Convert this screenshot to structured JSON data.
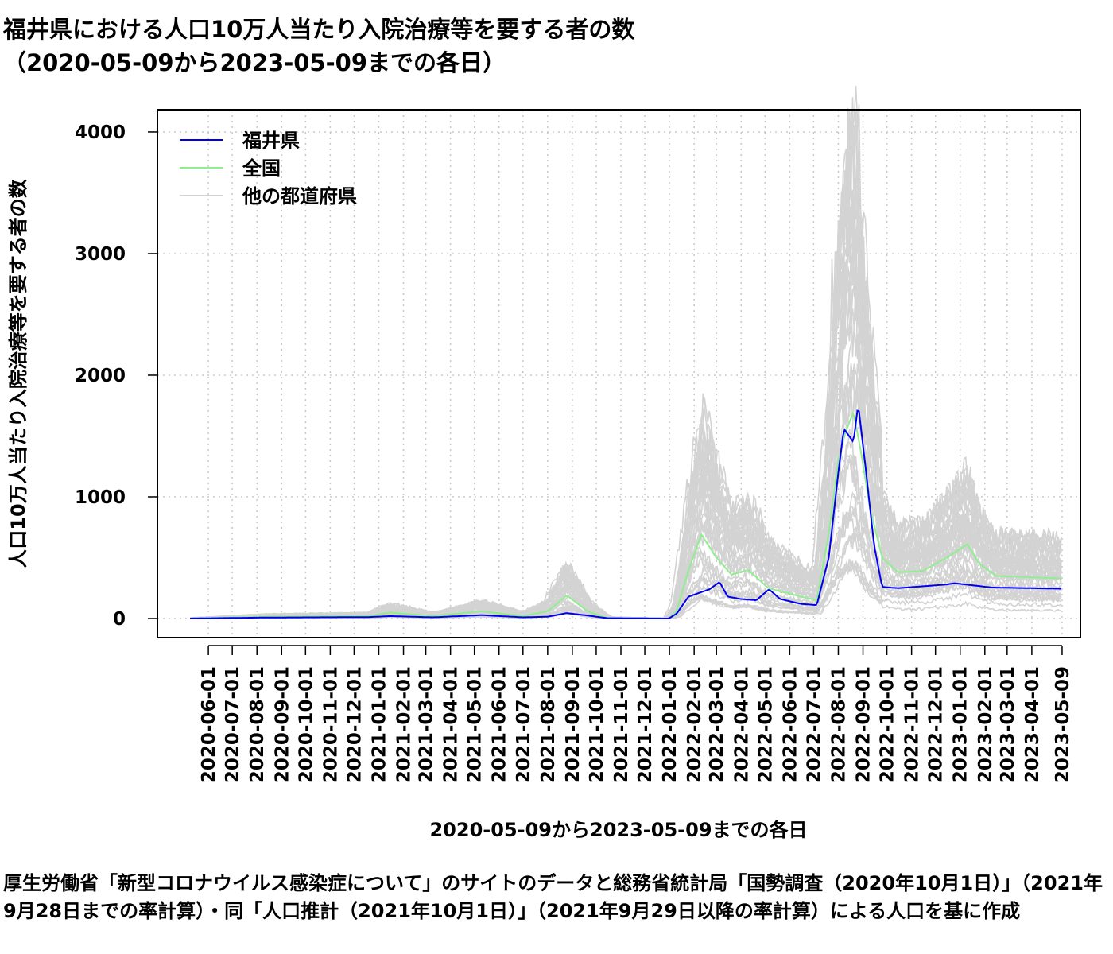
{
  "chart_data": {
    "type": "line",
    "title_line1": "福井県における人口10万人当たり入院治療等を要する者の数",
    "title_line2": "（2020-05-09から2023-05-09までの各日）",
    "xlabel": "2020-05-09から2023-05-09までの各日",
    "ylabel": "人口10万人当たり入院治療等を要する者の数",
    "ylim": [
      0,
      4150
    ],
    "yticks": [
      0,
      1000,
      2000,
      3000,
      4000
    ],
    "xlim": [
      "2020-03-29",
      "2023-06-01"
    ],
    "xtick_labels": [
      "2020-06-01",
      "2020-07-01",
      "2020-08-01",
      "2020-09-01",
      "2020-10-01",
      "2020-11-01",
      "2020-12-01",
      "2021-01-01",
      "2021-02-01",
      "2021-03-01",
      "2021-04-01",
      "2021-05-01",
      "2021-06-01",
      "2021-07-01",
      "2021-08-01",
      "2021-09-01",
      "2021-10-01",
      "2021-11-01",
      "2021-12-01",
      "2022-01-01",
      "2022-02-01",
      "2022-03-01",
      "2022-04-01",
      "2022-05-01",
      "2022-06-01",
      "2022-07-01",
      "2022-08-01",
      "2022-09-01",
      "2022-10-01",
      "2022-11-01",
      "2022-12-01",
      "2023-01-01",
      "2023-02-01",
      "2023-03-01",
      "2023-04-01",
      "2023-05-09"
    ],
    "grid": "dotted",
    "legend": {
      "position": "top-left",
      "entries": [
        {
          "label": "福井県",
          "color": "#0000ee"
        },
        {
          "label": "全国",
          "color": "#90ee90"
        },
        {
          "label": "他の都道府県",
          "color": "#d3d3d3"
        }
      ]
    },
    "series": [
      {
        "name": "福井県",
        "color": "#0000ee",
        "points": [
          [
            "2020-05-09",
            0
          ],
          [
            "2020-08-10",
            8
          ],
          [
            "2020-12-20",
            12
          ],
          [
            "2021-01-15",
            20
          ],
          [
            "2021-03-10",
            10
          ],
          [
            "2021-05-10",
            28
          ],
          [
            "2021-07-01",
            10
          ],
          [
            "2021-08-01",
            15
          ],
          [
            "2021-08-25",
            45
          ],
          [
            "2021-09-20",
            25
          ],
          [
            "2021-10-15",
            3
          ],
          [
            "2021-12-31",
            0
          ],
          [
            "2022-01-10",
            40
          ],
          [
            "2022-01-25",
            180
          ],
          [
            "2022-02-20",
            240
          ],
          [
            "2022-03-05",
            300
          ],
          [
            "2022-03-15",
            180
          ],
          [
            "2022-04-01",
            160
          ],
          [
            "2022-04-20",
            150
          ],
          [
            "2022-05-06",
            240
          ],
          [
            "2022-05-20",
            160
          ],
          [
            "2022-06-15",
            120
          ],
          [
            "2022-07-05",
            110
          ],
          [
            "2022-07-20",
            500
          ],
          [
            "2022-08-01",
            1200
          ],
          [
            "2022-08-08",
            1560
          ],
          [
            "2022-08-20",
            1450
          ],
          [
            "2022-08-26",
            1760
          ],
          [
            "2022-09-05",
            1200
          ],
          [
            "2022-09-15",
            600
          ],
          [
            "2022-09-25",
            260
          ],
          [
            "2022-10-15",
            250
          ],
          [
            "2022-12-15",
            280
          ],
          [
            "2022-12-25",
            290
          ],
          [
            "2023-02-10",
            255
          ],
          [
            "2023-05-09",
            245
          ]
        ]
      },
      {
        "name": "全国",
        "color": "#90ee90",
        "points": [
          [
            "2020-05-09",
            2
          ],
          [
            "2020-08-10",
            15
          ],
          [
            "2020-12-20",
            20
          ],
          [
            "2021-01-15",
            50
          ],
          [
            "2021-03-10",
            20
          ],
          [
            "2021-05-10",
            60
          ],
          [
            "2021-07-01",
            20
          ],
          [
            "2021-08-01",
            60
          ],
          [
            "2021-08-25",
            190
          ],
          [
            "2021-09-20",
            60
          ],
          [
            "2021-10-15",
            5
          ],
          [
            "2021-12-31",
            0
          ],
          [
            "2022-01-10",
            60
          ],
          [
            "2022-01-25",
            400
          ],
          [
            "2022-02-10",
            690
          ],
          [
            "2022-03-01",
            500
          ],
          [
            "2022-03-20",
            360
          ],
          [
            "2022-04-10",
            400
          ],
          [
            "2022-05-05",
            250
          ],
          [
            "2022-06-15",
            180
          ],
          [
            "2022-07-05",
            150
          ],
          [
            "2022-07-20",
            700
          ],
          [
            "2022-08-01",
            1300
          ],
          [
            "2022-08-10",
            1530
          ],
          [
            "2022-08-20",
            1700
          ],
          [
            "2022-08-30",
            1350
          ],
          [
            "2022-09-10",
            900
          ],
          [
            "2022-09-25",
            500
          ],
          [
            "2022-10-15",
            380
          ],
          [
            "2022-11-15",
            390
          ],
          [
            "2022-12-15",
            500
          ],
          [
            "2023-01-10",
            610
          ],
          [
            "2023-01-25",
            450
          ],
          [
            "2023-02-15",
            350
          ],
          [
            "2023-05-09",
            330
          ]
        ]
      }
    ]
  },
  "source_note": "厚生労働省「新型コロナウイルス感染症について」のサイトのデータと総務省統計局「国勢調査（2020年10月1日）」（2021年9月28日までの率計算）・同「人口推計（2021年10月1日）」（2021年9月29日以降の率計算）による人口を基に作成"
}
